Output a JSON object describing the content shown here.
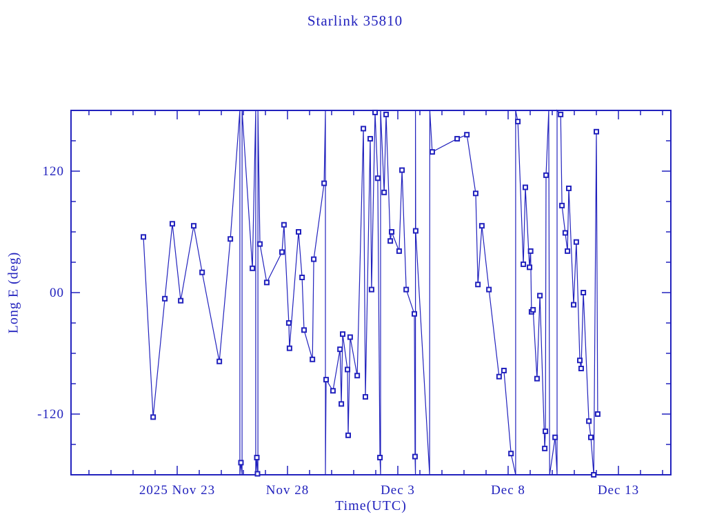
{
  "title": "Starlink 35810",
  "colors": {
    "plot": "#2121bd",
    "background": "#ffffff"
  },
  "chart_data": {
    "type": "line",
    "title": "Starlink 35810",
    "xlabel": "Time(UTC)",
    "ylabel": "Long E (deg)",
    "grid": false,
    "legend": "none",
    "marker_style": "open-square",
    "x_unit": "days after 2025 Nov 23 00:00 UTC",
    "xlim": [
      -4.8125,
      22.375
    ],
    "ylim": [
      -180,
      180
    ],
    "y_wrap_deg": 180,
    "x_axis": {
      "minor_tick_interval_days": 1,
      "minor_tick_range_days": [
        -4,
        22
      ],
      "major_ticks": [
        {
          "day": 0,
          "label": "2025 Nov 23"
        },
        {
          "day": 5,
          "label": "Nov 28"
        },
        {
          "day": 10,
          "label": "Dec  3"
        },
        {
          "day": 15,
          "label": "Dec  8"
        },
        {
          "day": 20,
          "label": "Dec 13"
        }
      ]
    },
    "y_axis": {
      "minor_tick_interval_deg": 30,
      "major_ticks": [
        {
          "value": 120,
          "label": "120"
        },
        {
          "value": 0,
          "label": "00"
        },
        {
          "value": -120,
          "label": "-120"
        }
      ]
    },
    "point_format": [
      "days_after_2025_Nov_23_00UTC",
      "longitude_deg_east",
      "is_data_marker_1_or_wrap_helper_0"
    ],
    "series": [
      {
        "name": "Long E (deg)",
        "points": [
          [
            -1.53,
            55,
            1
          ],
          [
            -1.09,
            -123,
            1
          ],
          [
            -0.56,
            -6,
            1
          ],
          [
            -0.22,
            68,
            1
          ],
          [
            0.16,
            -8,
            1
          ],
          [
            0.75,
            66,
            1
          ],
          [
            1.13,
            20,
            1
          ],
          [
            1.91,
            -68,
            1
          ],
          [
            2.41,
            53,
            1
          ],
          [
            2.84,
            180,
            0
          ],
          [
            2.84,
            -180,
            0
          ],
          [
            2.89,
            -168,
            1
          ],
          [
            2.94,
            -180,
            0
          ],
          [
            2.94,
            180,
            0
          ],
          [
            3.41,
            24,
            1
          ],
          [
            3.56,
            180,
            0
          ],
          [
            3.56,
            -180,
            0
          ],
          [
            3.61,
            -163,
            1
          ],
          [
            3.64,
            -179,
            1
          ],
          [
            3.66,
            -180,
            0
          ],
          [
            3.66,
            180,
            0
          ],
          [
            3.75,
            48,
            1
          ],
          [
            4.06,
            10,
            1
          ],
          [
            4.75,
            40,
            1
          ],
          [
            4.84,
            67,
            1
          ],
          [
            5.06,
            -30,
            1
          ],
          [
            5.09,
            -55,
            1
          ],
          [
            5.5,
            60,
            1
          ],
          [
            5.66,
            15,
            1
          ],
          [
            5.75,
            -37,
            1
          ],
          [
            6.13,
            -66,
            1
          ],
          [
            6.19,
            33,
            1
          ],
          [
            6.66,
            108,
            1
          ],
          [
            6.72,
            180,
            0
          ],
          [
            6.72,
            -180,
            0
          ],
          [
            6.75,
            -86,
            1
          ],
          [
            7.06,
            -97,
            1
          ],
          [
            7.38,
            -56,
            1
          ],
          [
            7.44,
            -110,
            1
          ],
          [
            7.5,
            -41,
            1
          ],
          [
            7.72,
            -76,
            1
          ],
          [
            7.75,
            -141,
            1
          ],
          [
            7.84,
            -44,
            1
          ],
          [
            8.16,
            -82,
            1
          ],
          [
            8.44,
            162,
            1
          ],
          [
            8.53,
            -103,
            1
          ],
          [
            8.75,
            152,
            1
          ],
          [
            8.81,
            3,
            1
          ],
          [
            8.97,
            178,
            1
          ],
          [
            9.09,
            113,
            1
          ],
          [
            9.19,
            -163,
            1
          ],
          [
            9.22,
            -180,
            0
          ],
          [
            9.22,
            180,
            0
          ],
          [
            9.38,
            99,
            1
          ],
          [
            9.47,
            176,
            1
          ],
          [
            9.66,
            51,
            1
          ],
          [
            9.72,
            60,
            1
          ],
          [
            10.06,
            41,
            1
          ],
          [
            10.19,
            121,
            1
          ],
          [
            10.38,
            3,
            1
          ],
          [
            10.75,
            -21,
            1
          ],
          [
            10.78,
            -162,
            1
          ],
          [
            10.8,
            -180,
            0
          ],
          [
            10.8,
            180,
            0
          ],
          [
            10.81,
            61,
            1
          ],
          [
            11.44,
            -180,
            0
          ],
          [
            11.45,
            180,
            0
          ],
          [
            11.56,
            139,
            1
          ],
          [
            12.69,
            152,
            1
          ],
          [
            13.13,
            156,
            1
          ],
          [
            13.53,
            98,
            1
          ],
          [
            13.63,
            8,
            1
          ],
          [
            13.81,
            66,
            1
          ],
          [
            14.13,
            3,
            1
          ],
          [
            14.59,
            -83,
            1
          ],
          [
            14.81,
            -77,
            1
          ],
          [
            15.13,
            -159,
            1
          ],
          [
            15.34,
            -180,
            0
          ],
          [
            15.34,
            180,
            0
          ],
          [
            15.44,
            169,
            1
          ],
          [
            15.69,
            28,
            1
          ],
          [
            15.78,
            104,
            1
          ],
          [
            15.97,
            25,
            1
          ],
          [
            16.02,
            41,
            1
          ],
          [
            16.06,
            -19,
            1
          ],
          [
            16.13,
            -17,
            1
          ],
          [
            16.31,
            -85,
            1
          ],
          [
            16.44,
            -3,
            1
          ],
          [
            16.66,
            -154,
            1
          ],
          [
            16.69,
            -137,
            1
          ],
          [
            16.72,
            116,
            1
          ],
          [
            16.84,
            180,
            0
          ],
          [
            16.88,
            -180,
            0
          ],
          [
            17.13,
            -143,
            1
          ],
          [
            17.22,
            -180,
            0
          ],
          [
            17.22,
            180,
            0
          ],
          [
            17.38,
            176,
            1
          ],
          [
            17.44,
            86,
            1
          ],
          [
            17.59,
            59,
            1
          ],
          [
            17.69,
            41,
            1
          ],
          [
            17.75,
            103,
            1
          ],
          [
            17.97,
            -12,
            1
          ],
          [
            18.09,
            50,
            1
          ],
          [
            18.25,
            -67,
            1
          ],
          [
            18.31,
            -75,
            1
          ],
          [
            18.41,
            0,
            1
          ],
          [
            18.66,
            -127,
            1
          ],
          [
            18.75,
            -143,
            1
          ],
          [
            18.88,
            -180,
            1
          ],
          [
            19.0,
            159,
            1
          ],
          [
            19.06,
            -120,
            1
          ]
        ]
      }
    ]
  }
}
